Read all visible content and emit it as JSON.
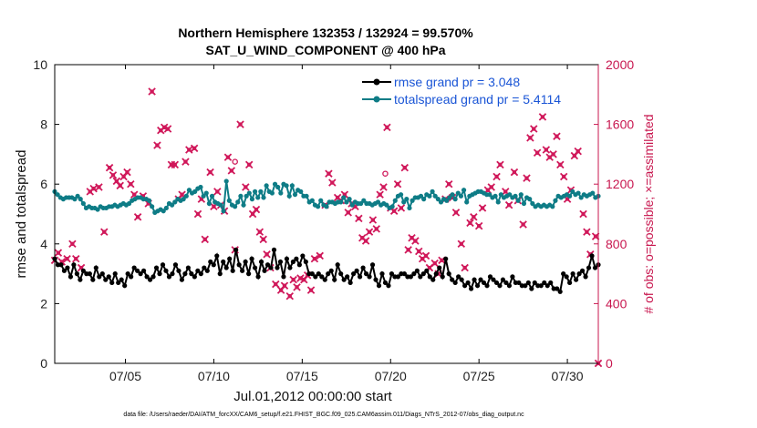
{
  "chart_data": {
    "type": "line",
    "title": "Northern Hemisphere 132353 / 132924 = 99.570%",
    "subtitle": "SAT_U_WIND_COMPONENT @ 400 hPa",
    "xlabel": "Jul.01,2012 00:00:00 start",
    "ylabel": "rmse and totalspread",
    "ylabel_right": "# of obs: o=possible; ×=assimilated",
    "footer": "data file: /Users/raeder/DAI/ATM_forcXX/CAM6_setup/f.e21.FHIST_BGC.f09_025.CAM6assim.011/Diags_NTrS_2012-07/obs_diag_output.nc",
    "xlim": [
      1,
      31.75
    ],
    "ylim": [
      0,
      10
    ],
    "ylim_right": [
      0,
      2000
    ],
    "x_ticks": [
      5,
      10,
      15,
      20,
      25,
      30
    ],
    "x_tick_labels": [
      "07/05",
      "07/10",
      "07/15",
      "07/20",
      "07/25",
      "07/30"
    ],
    "y_ticks": [
      0,
      2,
      4,
      6,
      8,
      10
    ],
    "y_tick_labels": [
      "0",
      "2",
      "4",
      "6",
      "8",
      "10"
    ],
    "y_ticks_right": [
      0,
      400,
      800,
      1200,
      1600,
      2000
    ],
    "y_tick_labels_right": [
      "0",
      "400",
      "800",
      "1200",
      "1600",
      "2000"
    ],
    "legend_position": "top-right",
    "colors": {
      "rmse": "#000000",
      "spread": "#0e7c86",
      "obs": "#d0185a"
    },
    "series": [
      {
        "name": "rmse grand pr = 3.048",
        "color": "#000000",
        "values": [
          3.5,
          3.3,
          3.3,
          3.1,
          3.2,
          2.9,
          3.3,
          3.0,
          2.8,
          3.1,
          3.0,
          3.0,
          2.8,
          3.2,
          2.9,
          3.0,
          2.8,
          2.9,
          2.7,
          3.0,
          2.7,
          2.8,
          2.6,
          3.0,
          2.9,
          3.2,
          3.1,
          3.0,
          3.1,
          2.9,
          2.8,
          2.9,
          3.2,
          3.0,
          3.3,
          3.1,
          2.9,
          3.0,
          3.3,
          3.1,
          2.8,
          3.0,
          3.2,
          3.0,
          2.9,
          3.1,
          3.0,
          3.2,
          3.1,
          3.4,
          3.3,
          3.6,
          3.0,
          3.4,
          3.2,
          3.5,
          3.1,
          3.8,
          3.3,
          3.1,
          3.4,
          3.0,
          3.5,
          3.2,
          2.9,
          3.4,
          3.1,
          3.3,
          3.2,
          3.8,
          3.2,
          3.4,
          2.9,
          3.5,
          3.2,
          3.4,
          3.5,
          3.3,
          3.6,
          3.4,
          3.0,
          3.0,
          2.9,
          3.0,
          2.9,
          2.8,
          3.0,
          3.1,
          2.8,
          3.3,
          3.0,
          2.8,
          2.9,
          2.7,
          3.0,
          3.1,
          2.9,
          3.2,
          3.0,
          2.9,
          3.3,
          2.8,
          2.6,
          3.0,
          2.7,
          2.6,
          3.0,
          2.9,
          2.9,
          3.0,
          3.0,
          2.9,
          2.9,
          3.0,
          3.1,
          2.9,
          3.0,
          3.1,
          2.9,
          2.8,
          3.0,
          3.2,
          2.9,
          3.5,
          3.0,
          2.8,
          2.7,
          2.9,
          2.8,
          2.6,
          2.7,
          2.5,
          2.8,
          2.6,
          2.8,
          2.7,
          2.6,
          2.9,
          2.8,
          2.7,
          2.6,
          2.8,
          2.7,
          2.6,
          2.9,
          2.7,
          2.7,
          2.6,
          2.6,
          2.7,
          2.5,
          2.7,
          2.6,
          2.6,
          2.7,
          2.6,
          2.7,
          2.5,
          2.5,
          2.4,
          3.0,
          2.9,
          2.7,
          3.0,
          2.8,
          3.0,
          3.1,
          2.9,
          3.2,
          3.6,
          3.2,
          3.3
        ]
      },
      {
        "name": "totalspread grand pr = 5.4114",
        "color": "#0e7c86",
        "values": [
          5.75,
          5.65,
          5.55,
          5.5,
          5.55,
          5.55,
          5.55,
          5.5,
          5.6,
          5.5,
          5.35,
          5.2,
          5.25,
          5.2,
          5.2,
          5.15,
          5.25,
          5.2,
          5.2,
          5.25,
          5.25,
          5.3,
          5.25,
          5.3,
          5.35,
          5.3,
          5.35,
          5.45,
          5.5,
          5.55,
          5.55,
          5.5,
          5.5,
          5.45,
          5.25,
          5.05,
          5.1,
          5.15,
          5.1,
          5.2,
          5.35,
          5.3,
          5.4,
          5.5,
          5.45,
          5.5,
          5.6,
          5.8,
          5.7,
          5.75,
          5.85,
          5.9,
          5.6,
          5.7,
          5.35,
          5.6,
          5.4,
          5.35,
          5.3,
          5.1,
          6.1,
          5.45,
          5.3,
          5.25,
          5.4,
          5.6,
          5.3,
          5.6,
          5.7,
          5.5,
          5.75,
          5.55,
          5.75,
          5.55,
          5.95,
          5.75,
          5.7,
          6.0,
          5.9,
          5.7,
          6.0,
          5.95,
          5.6,
          5.95,
          5.65,
          5.8,
          5.75,
          5.6,
          5.6,
          5.4,
          5.45,
          5.3,
          5.25,
          5.45,
          5.3,
          5.25,
          5.4,
          5.4,
          5.35,
          5.4,
          5.4,
          5.55,
          5.4,
          5.5,
          5.3,
          5.4,
          5.35,
          5.35,
          5.45,
          5.35,
          5.35,
          5.3,
          5.35,
          5.4,
          5.3,
          5.35,
          5.3,
          5.2,
          5.25,
          5.45,
          5.6,
          5.65,
          5.4,
          5.5,
          5.2,
          5.45,
          5.55,
          5.55,
          5.6,
          5.5,
          5.65,
          5.6,
          5.75,
          5.6,
          5.5,
          5.4,
          5.5,
          5.45,
          5.55,
          5.65,
          5.5,
          5.7,
          5.6,
          5.8,
          5.4,
          5.6,
          5.65,
          5.7,
          5.75,
          5.75,
          5.7,
          5.65,
          5.65,
          5.55,
          5.6,
          5.4,
          5.65,
          5.55,
          5.6,
          5.65,
          5.55,
          5.6,
          5.45,
          5.65,
          5.35,
          5.55,
          5.5,
          5.35,
          5.25,
          5.3,
          5.25,
          5.3,
          5.25,
          5.3,
          5.25,
          5.45,
          5.6,
          5.55,
          5.6,
          5.65,
          5.6,
          5.75,
          5.65,
          5.7,
          5.55,
          5.65,
          5.6,
          5.65,
          5.7,
          5.55,
          5.6
        ]
      }
    ],
    "obs_assimilated": [
      [
        1.0,
        690
      ],
      [
        1.2,
        740
      ],
      [
        1.4,
        680
      ],
      [
        1.7,
        700
      ],
      [
        2.0,
        800
      ],
      [
        2.2,
        700
      ],
      [
        2.5,
        640
      ],
      [
        3.0,
        1150
      ],
      [
        3.2,
        1170
      ],
      [
        3.5,
        1180
      ],
      [
        3.8,
        880
      ],
      [
        4.1,
        1310
      ],
      [
        4.3,
        1260
      ],
      [
        4.5,
        1220
      ],
      [
        4.7,
        1190
      ],
      [
        4.9,
        1250
      ],
      [
        5.1,
        1280
      ],
      [
        5.3,
        1200
      ],
      [
        5.5,
        1130
      ],
      [
        5.7,
        980
      ],
      [
        6.0,
        1120
      ],
      [
        6.3,
        1070
      ],
      [
        6.5,
        1820
      ],
      [
        6.8,
        1460
      ],
      [
        7.0,
        1560
      ],
      [
        7.2,
        1580
      ],
      [
        7.4,
        1570
      ],
      [
        7.6,
        1330
      ],
      [
        7.8,
        1330
      ],
      [
        8.0,
        1100
      ],
      [
        8.2,
        1130
      ],
      [
        8.4,
        1350
      ],
      [
        8.6,
        1430
      ],
      [
        8.9,
        1440
      ],
      [
        9.1,
        1000
      ],
      [
        9.3,
        1100
      ],
      [
        9.5,
        830
      ],
      [
        9.8,
        1280
      ],
      [
        10.0,
        1050
      ],
      [
        10.2,
        1150
      ],
      [
        10.4,
        1060
      ],
      [
        10.6,
        1020
      ],
      [
        10.8,
        1380
      ],
      [
        11.0,
        1290
      ],
      [
        11.2,
        760
      ],
      [
        11.5,
        1600
      ],
      [
        11.8,
        1180
      ],
      [
        12.0,
        1330
      ],
      [
        12.2,
        1000
      ],
      [
        12.4,
        1030
      ],
      [
        12.6,
        880
      ],
      [
        12.8,
        830
      ],
      [
        13.0,
        730
      ],
      [
        13.2,
        640
      ],
      [
        13.5,
        530
      ],
      [
        13.8,
        490
      ],
      [
        14.0,
        520
      ],
      [
        14.3,
        450
      ],
      [
        14.5,
        560
      ],
      [
        14.7,
        510
      ],
      [
        14.9,
        570
      ],
      [
        15.1,
        560
      ],
      [
        15.3,
        590
      ],
      [
        15.5,
        490
      ],
      [
        15.7,
        700
      ],
      [
        16.0,
        720
      ],
      [
        16.3,
        1060
      ],
      [
        16.5,
        1270
      ],
      [
        16.7,
        1210
      ],
      [
        17.0,
        1110
      ],
      [
        17.2,
        1090
      ],
      [
        17.4,
        1130
      ],
      [
        17.6,
        1010
      ],
      [
        17.8,
        1070
      ],
      [
        18.0,
        1050
      ],
      [
        18.2,
        970
      ],
      [
        18.4,
        840
      ],
      [
        18.6,
        820
      ],
      [
        18.8,
        880
      ],
      [
        19.0,
        960
      ],
      [
        19.2,
        900
      ],
      [
        19.4,
        1130
      ],
      [
        19.6,
        1180
      ],
      [
        19.8,
        1580
      ],
      [
        20.0,
        1040
      ],
      [
        20.2,
        1020
      ],
      [
        20.4,
        1200
      ],
      [
        20.6,
        1040
      ],
      [
        20.8,
        1310
      ],
      [
        21.0,
        760
      ],
      [
        21.2,
        840
      ],
      [
        21.4,
        820
      ],
      [
        21.6,
        750
      ],
      [
        21.8,
        700
      ],
      [
        22.0,
        720
      ],
      [
        22.2,
        640
      ],
      [
        22.5,
        670
      ],
      [
        22.7,
        600
      ],
      [
        22.9,
        690
      ],
      [
        23.1,
        1100
      ],
      [
        23.3,
        1200
      ],
      [
        23.5,
        1110
      ],
      [
        23.7,
        1010
      ],
      [
        24.0,
        800
      ],
      [
        24.2,
        640
      ],
      [
        24.5,
        940
      ],
      [
        24.7,
        980
      ],
      [
        25.0,
        920
      ],
      [
        25.2,
        1040
      ],
      [
        25.5,
        1160
      ],
      [
        25.7,
        1180
      ],
      [
        26.0,
        1250
      ],
      [
        26.2,
        1330
      ],
      [
        26.5,
        1150
      ],
      [
        26.7,
        1060
      ],
      [
        27.0,
        1280
      ],
      [
        27.2,
        1090
      ],
      [
        27.5,
        930
      ],
      [
        27.7,
        1240
      ],
      [
        27.9,
        1510
      ],
      [
        28.1,
        1570
      ],
      [
        28.3,
        1410
      ],
      [
        28.6,
        1650
      ],
      [
        28.8,
        1430
      ],
      [
        29.0,
        1380
      ],
      [
        29.2,
        1400
      ],
      [
        29.4,
        1520
      ],
      [
        29.6,
        1330
      ],
      [
        29.8,
        1250
      ],
      [
        30.0,
        1100
      ],
      [
        30.2,
        1160
      ],
      [
        30.4,
        1390
      ],
      [
        30.6,
        1420
      ],
      [
        30.9,
        1000
      ],
      [
        31.1,
        880
      ],
      [
        31.3,
        730
      ],
      [
        31.6,
        850
      ],
      [
        31.75,
        0
      ]
    ],
    "obs_possible": [
      [
        11.2,
        1350
      ],
      [
        19.7,
        1270
      ]
    ]
  }
}
